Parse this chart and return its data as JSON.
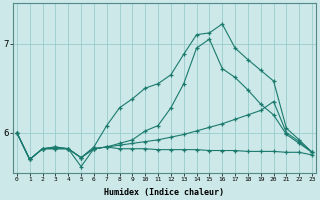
{
  "xlabel": "Humidex (Indice chaleur)",
  "ylabel": "",
  "bg_color": "#cce8e8",
  "line_color": "#1a7a6e",
  "grid_color": "#99cccc",
  "xticks": [
    0,
    1,
    2,
    3,
    4,
    5,
    6,
    7,
    8,
    9,
    10,
    11,
    12,
    13,
    14,
    15,
    16,
    17,
    18,
    19,
    20,
    21,
    22,
    23
  ],
  "yticks": [
    6,
    7
  ],
  "ylim": [
    5.55,
    7.45
  ],
  "xlim": [
    -0.3,
    23.3
  ],
  "series": [
    {
      "x": [
        0,
        1,
        2,
        3,
        4,
        5,
        6,
        7,
        8,
        9,
        10,
        11,
        12,
        13,
        14,
        15,
        16,
        17,
        18,
        19,
        20,
        21,
        22,
        23
      ],
      "y": [
        6.0,
        5.7,
        5.82,
        5.84,
        5.82,
        5.72,
        5.84,
        6.08,
        6.28,
        6.38,
        6.5,
        6.55,
        6.65,
        6.88,
        7.1,
        7.12,
        7.22,
        6.95,
        6.82,
        6.7,
        6.58,
        6.05,
        5.92,
        5.78
      ]
    },
    {
      "x": [
        0,
        1,
        2,
        3,
        4,
        5,
        6,
        7,
        8,
        9,
        10,
        11,
        12,
        13,
        14,
        15,
        16,
        17,
        18,
        19,
        20,
        21,
        22,
        23
      ],
      "y": [
        6.0,
        5.7,
        5.82,
        5.84,
        5.82,
        5.62,
        5.82,
        5.84,
        5.88,
        5.92,
        6.02,
        6.08,
        6.28,
        6.55,
        6.95,
        7.05,
        6.72,
        6.62,
        6.48,
        6.32,
        6.2,
        5.98,
        5.88,
        5.78
      ]
    },
    {
      "x": [
        0,
        1,
        2,
        3,
        4,
        5,
        6,
        7,
        8,
        9,
        10,
        11,
        12,
        13,
        14,
        15,
        16,
        17,
        18,
        19,
        20,
        21,
        22,
        23
      ],
      "y": [
        6.0,
        5.7,
        5.82,
        5.82,
        5.82,
        5.72,
        5.82,
        5.84,
        5.86,
        5.88,
        5.9,
        5.92,
        5.95,
        5.98,
        6.02,
        6.06,
        6.1,
        6.15,
        6.2,
        6.25,
        6.35,
        6.0,
        5.9,
        5.78
      ]
    },
    {
      "x": [
        0,
        1,
        2,
        3,
        4,
        5,
        6,
        7,
        8,
        9,
        10,
        11,
        12,
        13,
        14,
        15,
        16,
        17,
        18,
        19,
        20,
        21,
        22,
        23
      ],
      "y": [
        6.0,
        5.7,
        5.82,
        5.82,
        5.82,
        5.72,
        5.82,
        5.84,
        5.82,
        5.82,
        5.82,
        5.81,
        5.81,
        5.81,
        5.81,
        5.8,
        5.8,
        5.8,
        5.79,
        5.79,
        5.79,
        5.78,
        5.78,
        5.75
      ]
    }
  ]
}
